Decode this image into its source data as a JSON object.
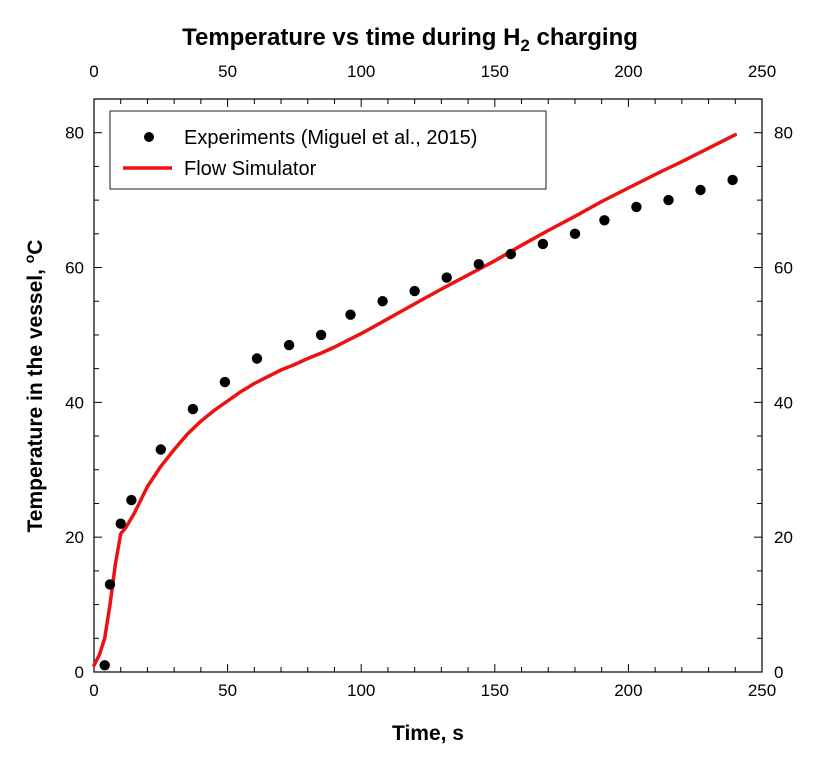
{
  "chart_data": {
    "type": "scatter+line",
    "title": "Temperature vs time during H",
    "title_subscript": "2",
    "title_suffix": " charging",
    "xlabel": "Time, s",
    "ylabel_main": "Temperature in the vessel, ",
    "ylabel_sup": "o",
    "ylabel_unit": "C",
    "xlim": [
      0,
      250
    ],
    "ylim": [
      0,
      85
    ],
    "xticks": [
      0,
      50,
      100,
      150,
      200,
      250
    ],
    "yticks": [
      0,
      20,
      40,
      60,
      80
    ],
    "x_minor_step": 10,
    "y_minor_step": 5,
    "legend_position": "top-left",
    "series": [
      {
        "name": "Experiments (Miguel et al., 2015)",
        "kind": "scatter",
        "color": "#000000",
        "x": [
          4,
          6,
          10,
          14,
          25,
          37,
          49,
          61,
          73,
          85,
          96,
          108,
          120,
          132,
          144,
          156,
          168,
          180,
          191,
          203,
          215,
          227,
          239
        ],
        "y": [
          1,
          13,
          22,
          25.5,
          33,
          39,
          43,
          46.5,
          48.5,
          50,
          53,
          55,
          56.5,
          58.5,
          60.5,
          62,
          63.5,
          65,
          67,
          69,
          70,
          71.5,
          73
        ]
      },
      {
        "name": "Flow Simulator",
        "kind": "line",
        "color": "#ee1111",
        "x": [
          0,
          2,
          4,
          6,
          8,
          10,
          12,
          15,
          20,
          25,
          30,
          35,
          40,
          45,
          50,
          55,
          60,
          65,
          70,
          75,
          80,
          85,
          90,
          95,
          100,
          110,
          120,
          130,
          140,
          150,
          160,
          170,
          180,
          190,
          200,
          210,
          220,
          230,
          240
        ],
        "y": [
          1,
          2.5,
          5,
          10,
          16,
          20.5,
          21.5,
          23.5,
          27.5,
          30.5,
          33,
          35.3,
          37.2,
          38.8,
          40.2,
          41.6,
          42.8,
          43.8,
          44.8,
          45.6,
          46.5,
          47.3,
          48.2,
          49.2,
          50.2,
          52.4,
          54.6,
          56.8,
          58.9,
          61,
          63.3,
          65.5,
          67.6,
          69.8,
          71.8,
          73.8,
          75.7,
          77.7,
          79.7
        ]
      }
    ]
  }
}
